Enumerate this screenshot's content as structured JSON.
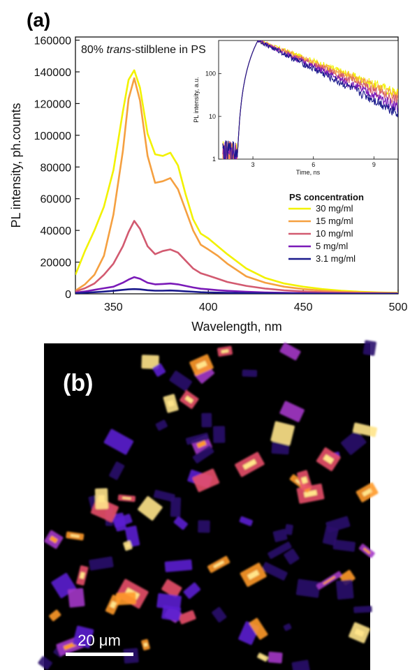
{
  "panel_a_label": "(a)",
  "panel_b_label": "(b)",
  "chart_data": [
    {
      "type": "line",
      "annotation_prefix": "80% ",
      "annotation_italic": "trans",
      "annotation_suffix": "-stilblene in PS",
      "xlabel": "Wavelength, nm",
      "ylabel": "PL intensity, ph.counts",
      "xlim": [
        330,
        500
      ],
      "ylim": [
        0,
        162000
      ],
      "xticks": [
        "350",
        "400",
        "450",
        "500"
      ],
      "yticks": [
        "0",
        "20000",
        "40000",
        "60000",
        "80000",
        "100000",
        "120000",
        "140000",
        "160000"
      ],
      "legend_title": "PS concentration",
      "legend_placement": "lower-right",
      "series": [
        {
          "name": "30 mg/ml",
          "color": "#f2f200",
          "x": [
            330,
            335,
            340,
            345,
            350,
            355,
            358,
            361,
            364,
            368,
            372,
            376,
            380,
            384,
            388,
            392,
            396,
            400,
            405,
            410,
            420,
            430,
            440,
            450,
            460,
            470,
            480,
            490,
            500
          ],
          "y": [
            12000,
            27000,
            40000,
            55000,
            78000,
            115000,
            135000,
            141000,
            130000,
            101000,
            88000,
            87000,
            89000,
            81000,
            63000,
            47000,
            38000,
            35000,
            30000,
            25000,
            16000,
            10000,
            6500,
            4500,
            3000,
            2000,
            1300,
            900,
            600
          ]
        },
        {
          "name": "15 mg/ml",
          "color": "#f5a040",
          "x": [
            330,
            335,
            340,
            345,
            350,
            355,
            358,
            361,
            364,
            368,
            372,
            376,
            380,
            384,
            388,
            392,
            396,
            400,
            405,
            410,
            420,
            430,
            440,
            450,
            460,
            470,
            480,
            490,
            500
          ],
          "y": [
            2000,
            6000,
            12000,
            24000,
            50000,
            90000,
            123000,
            136000,
            122000,
            87000,
            70000,
            71000,
            73000,
            66000,
            53000,
            40000,
            31000,
            28000,
            24000,
            19000,
            11000,
            7000,
            4500,
            3000,
            2000,
            1300,
            900,
            600,
            400
          ]
        },
        {
          "name": "10 mg/ml",
          "color": "#d25a70",
          "x": [
            330,
            335,
            340,
            345,
            350,
            355,
            358,
            361,
            364,
            368,
            372,
            376,
            380,
            384,
            388,
            392,
            396,
            400,
            405,
            410,
            420,
            430,
            440,
            450,
            460,
            470,
            480,
            490,
            500
          ],
          "y": [
            1500,
            3500,
            6500,
            12000,
            19000,
            30000,
            39000,
            46000,
            41000,
            30000,
            25000,
            27000,
            28000,
            26000,
            21000,
            16000,
            13000,
            11500,
            9500,
            7500,
            5000,
            3300,
            2200,
            1500,
            1000,
            700,
            500,
            400,
            300
          ]
        },
        {
          "name": "5 mg/ml",
          "color": "#7a1ab8",
          "x": [
            330,
            335,
            340,
            345,
            350,
            355,
            358,
            361,
            364,
            368,
            372,
            376,
            380,
            384,
            388,
            392,
            396,
            400,
            405,
            410,
            420,
            430,
            440,
            450,
            460,
            470,
            480,
            490,
            500
          ],
          "y": [
            700,
            1500,
            2500,
            3500,
            4500,
            7000,
            9000,
            10500,
            9500,
            7000,
            6000,
            6200,
            6500,
            6000,
            5000,
            4000,
            3200,
            2800,
            2300,
            1900,
            1300,
            900,
            600,
            400,
            300,
            200,
            150,
            100,
            80
          ]
        },
        {
          "name": "3.1 mg/ml",
          "color": "#1a1a8c",
          "x": [
            330,
            335,
            340,
            345,
            350,
            355,
            358,
            361,
            364,
            368,
            372,
            376,
            380,
            384,
            388,
            392,
            396,
            400,
            405,
            410,
            420,
            430,
            440,
            450,
            460,
            470,
            480,
            490,
            500
          ],
          "y": [
            300,
            700,
            1000,
            1400,
            1900,
            2500,
            2800,
            3000,
            2800,
            2300,
            2000,
            2000,
            2100,
            1900,
            1600,
            1300,
            1000,
            900,
            750,
            600,
            400,
            300,
            200,
            150,
            100,
            80,
            60,
            50,
            40
          ]
        }
      ]
    },
    {
      "type": "line",
      "role": "inset",
      "xlabel": "Time, ns",
      "ylabel": "PL intensity, a.u.",
      "xlim": [
        1.3,
        10.2
      ],
      "ylim_log": [
        1,
        600
      ],
      "log_y": true,
      "xticks": [
        "3",
        "6",
        "9"
      ],
      "xtick_values": [
        3,
        6,
        9
      ],
      "yticks": [
        "1",
        "10",
        "100"
      ],
      "ytick_values": [
        1,
        10,
        100
      ],
      "series": [
        {
          "name": "30 mg/ml",
          "color": "#f2f200",
          "tau": 2.45
        },
        {
          "name": "15 mg/ml",
          "color": "#f5a040",
          "tau": 2.35
        },
        {
          "name": "10 mg/ml",
          "color": "#d25a70",
          "tau": 2.15
        },
        {
          "name": "5 mg/ml",
          "color": "#7a1ab8",
          "tau": 1.95
        },
        {
          "name": "3.1 mg/ml",
          "color": "#1a1a8c",
          "tau": 1.8
        }
      ]
    }
  ],
  "image_b": {
    "scale_bar_label": "20 μm",
    "colormap": [
      "#000000",
      "#2a0f6b",
      "#5b1fd0",
      "#a438c8",
      "#e8506a",
      "#ff9a2a",
      "#ffe48a"
    ]
  }
}
